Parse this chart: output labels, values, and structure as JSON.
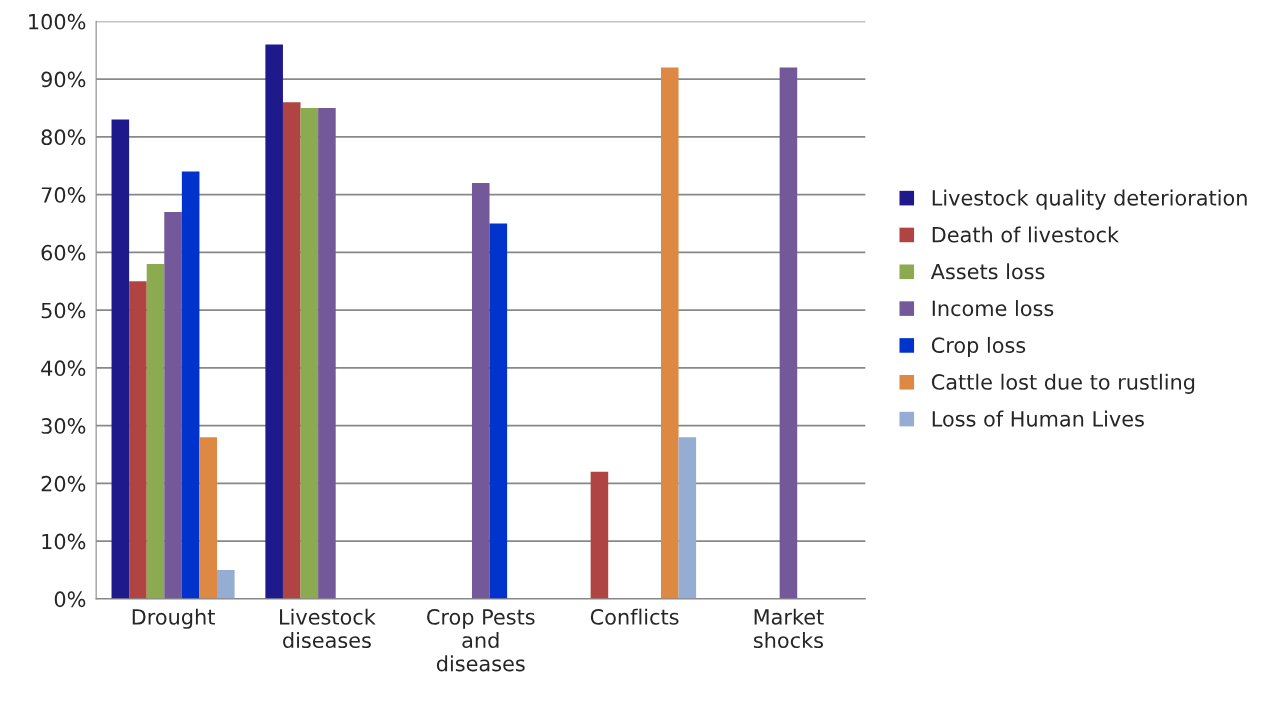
{
  "chart_data": {
    "type": "bar",
    "categories": [
      "Drought",
      "Livestock\ndiseases",
      "Crop Pests\nand\ndiseases",
      "Conflicts",
      "Market\nshocks"
    ],
    "series": [
      {
        "name": "Livestock quality deterioration",
        "color": "#1f1a8c",
        "values": [
          83,
          96,
          null,
          null,
          null
        ]
      },
      {
        "name": "Death of livestock",
        "color": "#b04443",
        "values": [
          55,
          86,
          null,
          22,
          null
        ]
      },
      {
        "name": "Assets loss",
        "color": "#8caa4f",
        "values": [
          58,
          85,
          null,
          null,
          null
        ]
      },
      {
        "name": "Income loss",
        "color": "#74599a",
        "values": [
          67,
          85,
          72,
          null,
          92
        ]
      },
      {
        "name": "Crop loss",
        "color": "#0033cc",
        "values": [
          74,
          null,
          65,
          null,
          null
        ]
      },
      {
        "name": "Cattle lost due to rustling",
        "color": "#dd8843",
        "values": [
          28,
          null,
          null,
          92,
          null
        ]
      },
      {
        "name": "Loss of Human Lives",
        "color": "#95acd3",
        "values": [
          5,
          null,
          null,
          28,
          null
        ]
      }
    ],
    "ylim": [
      0,
      100
    ],
    "yticks": [
      {
        "value": 0,
        "label": "0%"
      },
      {
        "value": 10,
        "label": "10%"
      },
      {
        "value": 20,
        "label": "20%"
      },
      {
        "value": 30,
        "label": "30%"
      },
      {
        "value": 40,
        "label": "40%"
      },
      {
        "value": 50,
        "label": "50%"
      },
      {
        "value": 60,
        "label": "60%"
      },
      {
        "value": 70,
        "label": "70%"
      },
      {
        "value": 80,
        "label": "80%"
      },
      {
        "value": 90,
        "label": "90%"
      },
      {
        "value": 100,
        "label": "100%"
      }
    ],
    "grid": "y",
    "legend": "right"
  }
}
